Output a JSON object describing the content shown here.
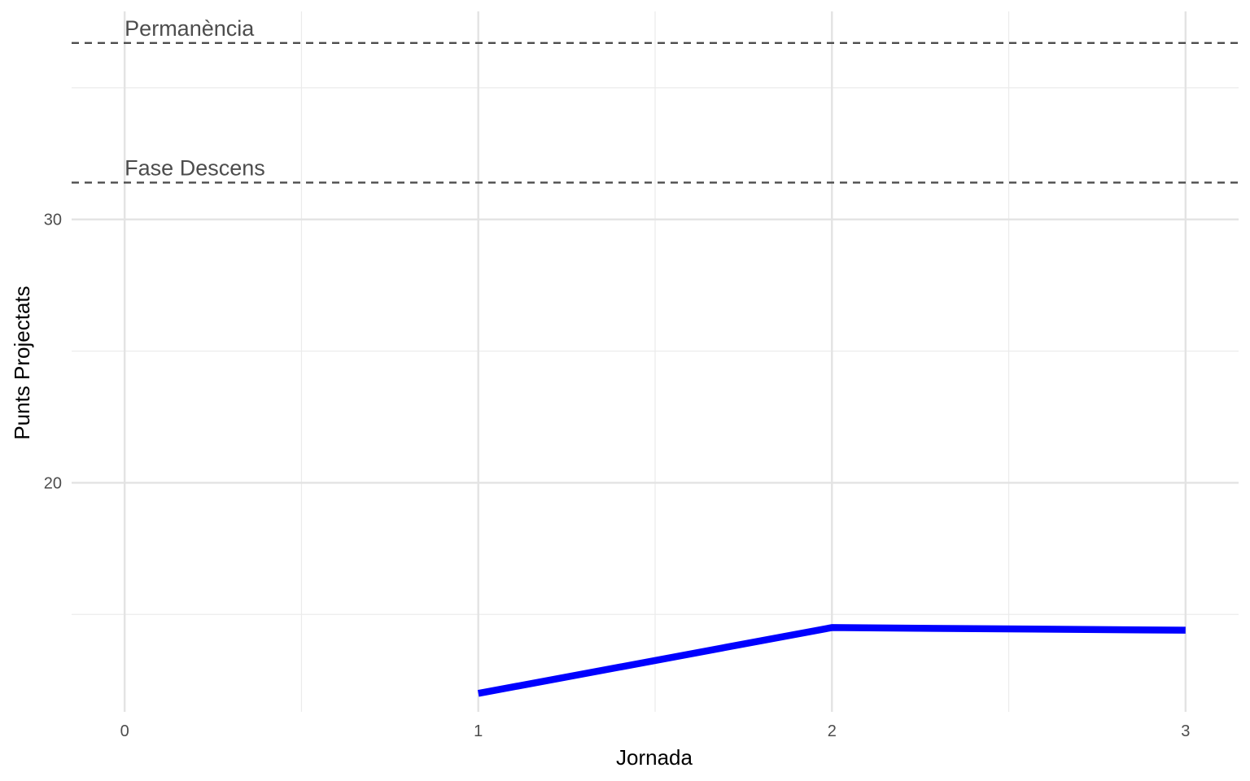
{
  "chart_data": {
    "type": "line",
    "title": "",
    "xlabel": "Jornada",
    "ylabel": "Punts Projectats",
    "xlim": [
      -0.15,
      3.15
    ],
    "ylim": [
      11.3,
      37.9
    ],
    "x_ticks": [
      0,
      1,
      2,
      3
    ],
    "x_tick_labels": [
      "0",
      "1",
      "2",
      "3"
    ],
    "y_ticks": [
      20,
      30
    ],
    "y_tick_labels": [
      "20",
      "30"
    ],
    "grid": true,
    "series": [
      {
        "x": [
          1,
          2,
          3
        ],
        "y": [
          12.0,
          14.5,
          14.4
        ],
        "color": "#0000ff"
      }
    ],
    "reference_lines": [
      {
        "label": "Permanència",
        "y": 36.7,
        "style": "dashed",
        "color": "#4d4d4d"
      },
      {
        "label": "Fase Descens",
        "y": 31.4,
        "style": "dashed",
        "color": "#4d4d4d"
      }
    ],
    "legend": "none"
  }
}
